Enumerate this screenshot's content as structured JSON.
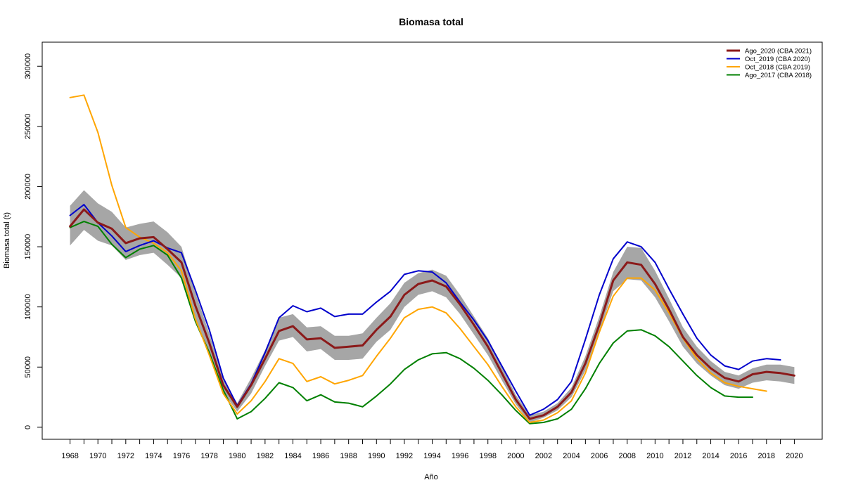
{
  "chart_data": {
    "type": "line",
    "title": "Biomasa total",
    "xlabel": "Año",
    "ylabel": "Biomasa total (t)",
    "xlim": [
      1966,
      2022
    ],
    "ylim": [
      -10000,
      320000
    ],
    "x_ticks": [
      1968,
      1969,
      1970,
      1971,
      1972,
      1973,
      1974,
      1975,
      1976,
      1977,
      1978,
      1979,
      1980,
      1981,
      1982,
      1983,
      1984,
      1985,
      1986,
      1987,
      1988,
      1989,
      1990,
      1991,
      1992,
      1993,
      1994,
      1995,
      1996,
      1997,
      1998,
      1999,
      2000,
      2001,
      2002,
      2003,
      2004,
      2005,
      2006,
      2007,
      2008,
      2009,
      2010,
      2011,
      2012,
      2013,
      2014,
      2015,
      2016,
      2017,
      2018,
      2019,
      2020
    ],
    "x_tick_labels": [
      1968,
      1970,
      1972,
      1974,
      1976,
      1978,
      1980,
      1982,
      1984,
      1986,
      1988,
      1990,
      1992,
      1994,
      1996,
      1998,
      2000,
      2002,
      2004,
      2006,
      2008,
      2010,
      2012,
      2014,
      2016,
      2018,
      2020
    ],
    "y_ticks": [
      0,
      50000,
      100000,
      150000,
      200000,
      250000,
      300000
    ],
    "y_tick_labels": [
      "0",
      "50000",
      "100000",
      "150000",
      "200000",
      "250000",
      "300000"
    ],
    "grid": false,
    "legend_position": "top-right",
    "legend": [
      {
        "name": "Ago_2020 (CBA 2021)",
        "color": "#8B1A1A",
        "width": 3
      },
      {
        "name": "Oct_2019 (CBA 2020)",
        "color": "#0000CC",
        "width": 2
      },
      {
        "name": "Oct_2018 (CBA 2019)",
        "color": "#FFA500",
        "width": 2
      },
      {
        "name": "Ago_2017 (CBA 2018)",
        "color": "#008000",
        "width": 2
      }
    ],
    "band": {
      "color": "#A6A6A6",
      "x_start": 1968,
      "upper": [
        184000,
        197000,
        186000,
        179000,
        166000,
        169000,
        171000,
        162000,
        150000,
        112000,
        78000,
        40000,
        20000,
        41000,
        64000,
        91000,
        94000,
        83000,
        84000,
        76000,
        76000,
        78000,
        91000,
        103000,
        120000,
        128000,
        131000,
        126000,
        110000,
        92000,
        74000,
        51000,
        27000,
        10000,
        13000,
        20000,
        33000,
        59000,
        92000,
        129000,
        150000,
        149000,
        130000,
        107000,
        83000,
        67000,
        55000,
        46000,
        43000,
        49000,
        52000,
        52000,
        50000
      ],
      "lower": [
        151000,
        164000,
        155000,
        151000,
        139000,
        143000,
        145000,
        135000,
        124000,
        90000,
        62000,
        29000,
        13000,
        28000,
        51000,
        72000,
        75000,
        63000,
        65000,
        56000,
        56000,
        57000,
        71000,
        81000,
        100000,
        110000,
        113000,
        108000,
        94000,
        77000,
        60000,
        39000,
        19000,
        4000,
        8000,
        14000,
        25000,
        47000,
        79000,
        113000,
        123000,
        122000,
        108000,
        88000,
        67000,
        53000,
        43000,
        35000,
        32000,
        37000,
        39000,
        38000,
        36000
      ]
    },
    "series": [
      {
        "name": "Ago_2020 (CBA 2021)",
        "color": "#8B1A1A",
        "width": 3,
        "x_start": 1968,
        "values": [
          167000,
          181000,
          170000,
          165000,
          153000,
          157000,
          158000,
          148000,
          137000,
          101000,
          70000,
          35000,
          17000,
          35000,
          57000,
          80000,
          84000,
          73000,
          74000,
          66000,
          67000,
          68000,
          81000,
          92000,
          110000,
          119000,
          122000,
          117000,
          102000,
          85000,
          67000,
          45000,
          23000,
          7000,
          10000,
          17000,
          29000,
          53000,
          85000,
          122000,
          137000,
          135000,
          119000,
          98000,
          75000,
          60000,
          49000,
          41000,
          38000,
          44000,
          46000,
          45000,
          43000
        ]
      },
      {
        "name": "Oct_2019 (CBA 2020)",
        "color": "#0000CC",
        "width": 2,
        "x_start": 1968,
        "values": [
          176000,
          185000,
          170000,
          159000,
          146000,
          151000,
          155000,
          149000,
          145000,
          114000,
          81000,
          41000,
          18000,
          36000,
          62000,
          91000,
          101000,
          96000,
          99000,
          92000,
          94000,
          94000,
          104000,
          113000,
          127000,
          130000,
          129000,
          120000,
          104000,
          89000,
          72000,
          51000,
          30000,
          10000,
          15000,
          23000,
          38000,
          73000,
          110000,
          140000,
          154000,
          150000,
          137000,
          115000,
          94000,
          74000,
          60000,
          51000,
          48000,
          55000,
          57000,
          56000
        ]
      },
      {
        "name": "Oct_2018 (CBA 2019)",
        "color": "#FFA500",
        "width": 2,
        "x_start": 1968,
        "values": [
          274000,
          276000,
          245000,
          201000,
          166000,
          158000,
          153000,
          145000,
          130000,
          90000,
          60000,
          28000,
          11000,
          22000,
          38000,
          57000,
          53000,
          38000,
          42000,
          36000,
          39000,
          43000,
          59000,
          74000,
          91000,
          98000,
          100000,
          95000,
          82000,
          67000,
          52000,
          34000,
          17000,
          4000,
          6000,
          12000,
          22000,
          45000,
          79000,
          109000,
          124000,
          124000,
          114000,
          95000,
          74000,
          57000,
          45000,
          37000,
          34000,
          32000,
          30000
        ]
      },
      {
        "name": "Ago_2017 (CBA 2018)",
        "color": "#008000",
        "width": 2,
        "x_start": 1968,
        "values": [
          166000,
          171000,
          167000,
          152000,
          141000,
          148000,
          151000,
          143000,
          124000,
          88000,
          62000,
          31000,
          7000,
          13000,
          24000,
          37000,
          33000,
          22000,
          27000,
          21000,
          20000,
          17000,
          26000,
          36000,
          48000,
          56000,
          61000,
          62000,
          57000,
          49000,
          39000,
          27000,
          14000,
          3000,
          4000,
          7000,
          15000,
          32000,
          53000,
          70000,
          80000,
          81000,
          76000,
          67000,
          55000,
          43000,
          33000,
          26000,
          25000,
          25000
        ]
      }
    ]
  }
}
